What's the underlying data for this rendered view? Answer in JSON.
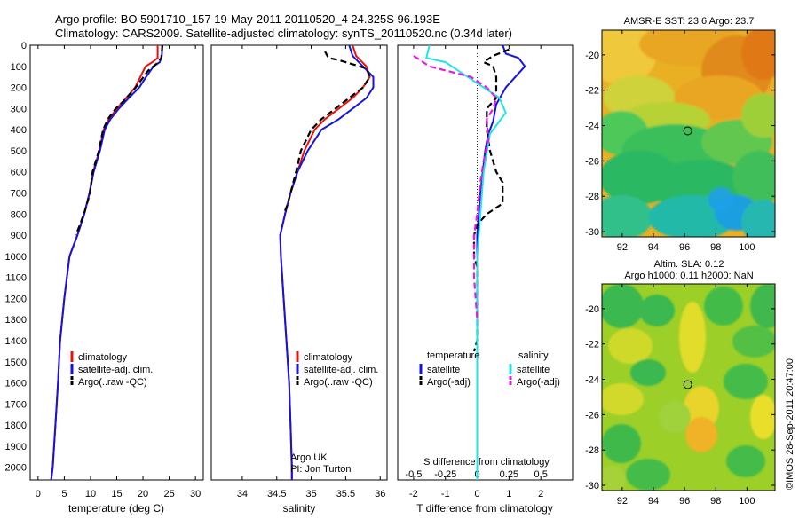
{
  "header": {
    "line1": "Argo profile: BO 5901710_157 19-May-2011 20110520_4 24.325S 96.193E",
    "line2": "Climatology: CARS2009. Satellite-adjusted climatology: synTS_20110520.nc (0.34d later)"
  },
  "stamp": "©IMOS 28-Sep-2011 20:47:00",
  "colors": {
    "red": "#e8110c",
    "blue": "#1414dc",
    "black": "#000000",
    "cyan": "#1fe6e6",
    "magenta": "#e619e6"
  },
  "depth_ticks": [
    0,
    100,
    200,
    300,
    400,
    500,
    600,
    700,
    800,
    900,
    1000,
    1100,
    1200,
    1300,
    1400,
    1500,
    1600,
    1700,
    1800,
    1900,
    2000
  ],
  "chart_data": [
    {
      "type": "line",
      "xlabel": "temperature (deg C)",
      "xlim": [
        -1.5,
        31.5
      ],
      "ylim": [
        2060,
        0
      ],
      "xticks": [
        0,
        5,
        10,
        15,
        20,
        25,
        30
      ],
      "legend": [
        "climatology",
        "satellite-adj. clim.",
        "Argo(..raw -QC)"
      ],
      "series": [
        {
          "name": "climatology",
          "color": "red",
          "dash": false,
          "points": [
            [
              22.8,
              0
            ],
            [
              22.8,
              60
            ],
            [
              21.8,
              80
            ],
            [
              20.5,
              100
            ],
            [
              19.5,
              150
            ],
            [
              18.5,
              200
            ],
            [
              16.8,
              250
            ],
            [
              15.0,
              300
            ],
            [
              13.5,
              350
            ],
            [
              12.5,
              400
            ],
            [
              11.7,
              500
            ],
            [
              10.5,
              600
            ],
            [
              9.8,
              700
            ],
            [
              8.8,
              800
            ],
            [
              7.5,
              900
            ],
            [
              6.0,
              1000
            ],
            [
              5.0,
              1200
            ],
            [
              4.2,
              1400
            ],
            [
              3.8,
              1600
            ],
            [
              3.3,
              1800
            ],
            [
              2.8,
              2000
            ],
            [
              2.5,
              2060
            ]
          ]
        },
        {
          "name": "satellite-adj. clim.",
          "color": "blue",
          "dash": false,
          "points": [
            [
              23.7,
              0
            ],
            [
              23.6,
              50
            ],
            [
              23.2,
              80
            ],
            [
              22.0,
              100
            ],
            [
              20.6,
              150
            ],
            [
              19.3,
              200
            ],
            [
              17.3,
              250
            ],
            [
              15.4,
              300
            ],
            [
              13.8,
              350
            ],
            [
              12.7,
              400
            ],
            [
              11.8,
              500
            ],
            [
              10.6,
              600
            ],
            [
              9.8,
              700
            ],
            [
              8.8,
              800
            ],
            [
              7.5,
              900
            ],
            [
              6.0,
              1000
            ],
            [
              5.0,
              1200
            ],
            [
              4.2,
              1400
            ],
            [
              3.8,
              1600
            ],
            [
              3.3,
              1800
            ],
            [
              2.8,
              2000
            ],
            [
              2.5,
              2060
            ]
          ]
        },
        {
          "name": "Argo(..raw -QC)",
          "color": "black",
          "dash": true,
          "points": [
            [
              23.7,
              0
            ],
            [
              23.5,
              60
            ],
            [
              22.5,
              90
            ],
            [
              21.0,
              120
            ],
            [
              19.8,
              160
            ],
            [
              18.6,
              200
            ],
            [
              16.5,
              260
            ],
            [
              14.8,
              300
            ],
            [
              13.3,
              350
            ],
            [
              12.4,
              400
            ],
            [
              11.6,
              500
            ],
            [
              10.4,
              600
            ],
            [
              9.9,
              700
            ],
            [
              9.0,
              780
            ],
            [
              8.0,
              850
            ],
            [
              7.2,
              900
            ]
          ]
        }
      ]
    },
    {
      "type": "line",
      "xlabel": "salinity",
      "xlim": [
        33.55,
        36.1
      ],
      "ylim": [
        2060,
        0
      ],
      "xticks": [
        34,
        34.5,
        35,
        35.5,
        36
      ],
      "legend": [
        "climatology",
        "satellite-adj. clim.",
        "Argo(..raw -QC)"
      ],
      "annotation": [
        "Argo UK",
        "PI: Jon Turton"
      ],
      "series": [
        {
          "name": "climatology",
          "color": "red",
          "dash": false,
          "points": [
            [
              35.6,
              0
            ],
            [
              35.65,
              50
            ],
            [
              35.8,
              100
            ],
            [
              35.85,
              150
            ],
            [
              35.75,
              200
            ],
            [
              35.6,
              250
            ],
            [
              35.4,
              300
            ],
            [
              35.2,
              350
            ],
            [
              35.05,
              400
            ],
            [
              34.9,
              500
            ],
            [
              34.8,
              600
            ],
            [
              34.7,
              700
            ],
            [
              34.62,
              800
            ],
            [
              34.55,
              900
            ],
            [
              34.56,
              1000
            ],
            [
              34.6,
              1200
            ],
            [
              34.64,
              1400
            ],
            [
              34.68,
              1600
            ],
            [
              34.7,
              1800
            ],
            [
              34.72,
              2000
            ],
            [
              34.72,
              2060
            ]
          ]
        },
        {
          "name": "satellite-adj. clim.",
          "color": "blue",
          "dash": false,
          "points": [
            [
              35.55,
              0
            ],
            [
              35.6,
              50
            ],
            [
              35.75,
              100
            ],
            [
              35.9,
              150
            ],
            [
              35.9,
              200
            ],
            [
              35.8,
              250
            ],
            [
              35.6,
              300
            ],
            [
              35.4,
              350
            ],
            [
              35.15,
              400
            ],
            [
              34.95,
              500
            ],
            [
              34.8,
              600
            ],
            [
              34.7,
              700
            ],
            [
              34.62,
              800
            ],
            [
              34.55,
              900
            ],
            [
              34.56,
              1000
            ],
            [
              34.6,
              1200
            ],
            [
              34.64,
              1400
            ],
            [
              34.68,
              1600
            ],
            [
              34.7,
              1800
            ],
            [
              34.72,
              2000
            ],
            [
              34.72,
              2060
            ]
          ]
        },
        {
          "name": "Argo(..raw -QC)",
          "color": "black",
          "dash": true,
          "points": [
            [
              35.2,
              30
            ],
            [
              35.25,
              60
            ],
            [
              35.4,
              70
            ],
            [
              35.6,
              90
            ],
            [
              35.8,
              110
            ],
            [
              35.85,
              150
            ],
            [
              35.75,
              200
            ],
            [
              35.55,
              250
            ],
            [
              35.35,
              300
            ],
            [
              35.15,
              350
            ],
            [
              35.0,
              400
            ],
            [
              34.85,
              500
            ],
            [
              34.78,
              600
            ],
            [
              34.7,
              700
            ],
            [
              34.65,
              760
            ],
            [
              34.6,
              800
            ]
          ]
        }
      ]
    },
    {
      "type": "line",
      "xlabel": "T difference from climatology",
      "xlabel_top": "S difference from climatology",
      "xlim": [
        -2.5,
        3.0
      ],
      "ylim": [
        2060,
        0
      ],
      "xticks": [
        -2,
        -1,
        0,
        1,
        2
      ],
      "xticks_top": [
        "-0.5",
        "-0.25",
        "0",
        "0.25",
        "0.5"
      ],
      "legend_temperature": {
        "title": "temperature",
        "entries": [
          "satellite",
          "Argo(-adj)"
        ]
      },
      "legend_salinity": {
        "title": "salinity",
        "entries": [
          "satellite",
          "Argo(-adj)"
        ]
      },
      "series": [
        {
          "name": "temperature satellite",
          "color": "blue",
          "dash": false,
          "points": [
            [
              0.8,
              0
            ],
            [
              0.9,
              40
            ],
            [
              1.3,
              60
            ],
            [
              1.5,
              100
            ],
            [
              1.2,
              150
            ],
            [
              0.9,
              200
            ],
            [
              0.6,
              280
            ],
            [
              0.5,
              360
            ],
            [
              0.35,
              420
            ],
            [
              0.25,
              500
            ],
            [
              0.1,
              700
            ],
            [
              0,
              900
            ],
            [
              0,
              1100
            ],
            [
              0,
              2060
            ]
          ]
        },
        {
          "name": "temperature Argo(-adj)",
          "color": "black",
          "dash": true,
          "points": [
            [
              1.0,
              20
            ],
            [
              0.5,
              50
            ],
            [
              0.2,
              80
            ],
            [
              0.5,
              100
            ],
            [
              0.6,
              150
            ],
            [
              0.6,
              250
            ],
            [
              0.3,
              300
            ],
            [
              0.3,
              400
            ],
            [
              0.4,
              500
            ],
            [
              0.6,
              600
            ],
            [
              0.8,
              650
            ],
            [
              0.8,
              750
            ],
            [
              0.3,
              800
            ],
            [
              0,
              850
            ],
            [
              -0.1,
              900
            ],
            [
              -0.1,
              1000
            ],
            [
              0,
              1050
            ],
            [
              0,
              1400
            ],
            [
              -0.1,
              1450
            ]
          ]
        },
        {
          "name": "salinity satellite",
          "color": "cyan",
          "dash": false,
          "points": [
            [
              -1.5,
              0
            ],
            [
              -1.6,
              60
            ],
            [
              -1.0,
              80
            ],
            [
              -0.3,
              150
            ],
            [
              0.2,
              200
            ],
            [
              0.7,
              250
            ],
            [
              0.9,
              320
            ],
            [
              0.7,
              360
            ],
            [
              0.4,
              420
            ],
            [
              0.2,
              600
            ],
            [
              0.1,
              800
            ],
            [
              0,
              1000
            ],
            [
              0,
              1300
            ],
            [
              0,
              2060
            ]
          ]
        },
        {
          "name": "salinity Argo(-adj)",
          "color": "magenta",
          "dash": true,
          "points": [
            [
              -2.0,
              50
            ],
            [
              -1.5,
              100
            ],
            [
              -0.2,
              150
            ],
            [
              0.3,
              200
            ],
            [
              0.6,
              250
            ],
            [
              0.5,
              300
            ],
            [
              0.3,
              350
            ],
            [
              0.35,
              450
            ],
            [
              0.2,
              550
            ],
            [
              0.1,
              650
            ],
            [
              0,
              800
            ],
            [
              -0.1,
              900
            ],
            [
              -0.1,
              1100
            ],
            [
              0,
              1300
            ]
          ]
        }
      ]
    },
    {
      "type": "heatmap",
      "title": "AMSR-E SST: 23.6 Argo: 23.7",
      "xlim": [
        90.7,
        101.8
      ],
      "ylim": [
        -30.3,
        -18.6
      ],
      "xticks": [
        92,
        94,
        96,
        98,
        100
      ],
      "yticks": [
        -20,
        -22,
        -24,
        -26,
        -28,
        -30
      ],
      "marker": {
        "x": 96.2,
        "y": -24.3
      }
    },
    {
      "type": "heatmap",
      "title": "Altim. SLA: 0.12",
      "subtitle": "Argo h1000: 0.11 h2000: NaN",
      "xlim": [
        90.7,
        101.8
      ],
      "ylim": [
        -30.3,
        -18.6
      ],
      "xticks": [
        92,
        94,
        96,
        98,
        100
      ],
      "yticks": [
        -20,
        -22,
        -24,
        -26,
        -28,
        -30
      ],
      "marker": {
        "x": 96.2,
        "y": -24.3
      }
    }
  ]
}
